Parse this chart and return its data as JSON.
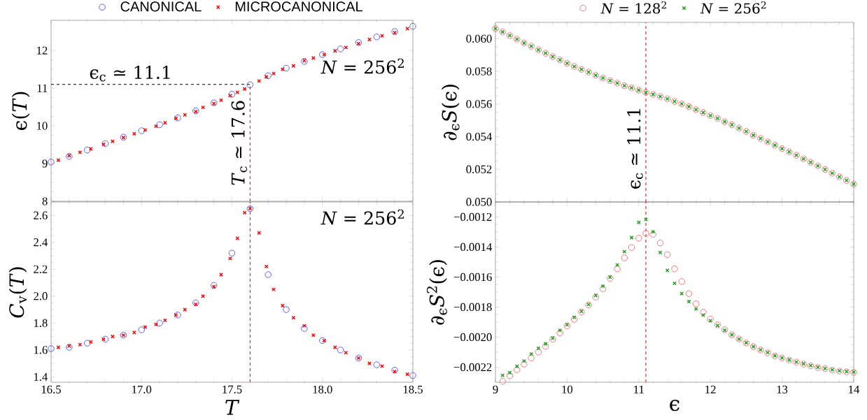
{
  "chart_data": [
    {
      "type": "scatter",
      "ylabel": "ϵ(*T*)",
      "xlim": [
        16.5,
        18.5
      ],
      "ylim": [
        8,
        12.8
      ],
      "xticks": [
        16.5,
        17,
        17.5,
        18,
        18.5
      ],
      "yticks": [
        8,
        9,
        10,
        11,
        12
      ],
      "tick_labels": "y",
      "legend": "top",
      "series": [
        {
          "name": "CANONICAL",
          "color": "#3a3aff",
          "marker": "circle",
          "x": [
            16.5,
            16.6,
            16.7,
            16.8,
            16.9,
            17.0,
            17.1,
            17.2,
            17.3,
            17.4,
            17.5,
            17.6,
            17.7,
            17.8,
            17.9,
            18.0,
            18.1,
            18.2,
            18.3,
            18.4,
            18.5
          ],
          "values": [
            9.04,
            9.19,
            9.36,
            9.53,
            9.7,
            9.87,
            10.03,
            10.21,
            10.4,
            10.61,
            10.84,
            11.09,
            11.33,
            11.53,
            11.71,
            11.89,
            12.04,
            12.21,
            12.36,
            12.5,
            12.64
          ]
        },
        {
          "name": "MICROCANONICAL",
          "color": "#ff0000",
          "marker": "cross",
          "x": [
            16.54,
            16.6,
            16.66,
            16.72,
            16.79,
            16.84,
            16.9,
            16.96,
            17.02,
            17.08,
            17.13,
            17.19,
            17.24,
            17.3,
            17.34,
            17.4,
            17.44,
            17.49,
            17.53,
            17.57,
            17.65,
            17.69,
            17.73,
            17.78,
            17.84,
            17.9,
            17.95,
            18.01,
            18.07,
            18.13,
            18.2,
            18.26,
            18.33,
            18.4,
            18.47
          ],
          "values": [
            9.09,
            9.21,
            9.3,
            9.39,
            9.51,
            9.59,
            9.69,
            9.79,
            9.89,
            9.99,
            10.08,
            10.2,
            10.29,
            10.38,
            10.49,
            10.59,
            10.68,
            10.8,
            10.89,
            10.98,
            11.19,
            11.3,
            11.39,
            11.5,
            11.59,
            11.73,
            11.8,
            11.89,
            11.99,
            12.08,
            12.18,
            12.29,
            12.39,
            12.47,
            12.58
          ]
        }
      ],
      "ref_lines": [
        {
          "axis": "y",
          "value": 11.1,
          "label": "ϵ$_{c}$ ≃ 11.1",
          "color": "#000000",
          "line_style": "dashed"
        },
        {
          "axis": "x",
          "value": 17.6,
          "label": "*T*$_{c}$ ≃ 17.6",
          "color": "#ff0000",
          "line_style": "dashed"
        }
      ],
      "annotations": [
        "*N* = 256$^{2}$"
      ]
    },
    {
      "type": "scatter",
      "xlabel": "*T*",
      "ylabel": "*C*$_{v}$(*T*)",
      "xlim": [
        16.5,
        18.5
      ],
      "ylim": [
        1.36,
        2.7
      ],
      "xticks": [
        16.5,
        {
          "value": 17,
          "label": "17.0"
        },
        17.5,
        {
          "value": 18,
          "label": "18.0"
        },
        18.5
      ],
      "yticks": [
        1.4,
        1.6,
        1.8,
        {
          "value": 2,
          "label": "2.0"
        },
        2.2,
        2.4,
        2.6
      ],
      "series": [
        {
          "color": "#3a3aff",
          "marker": "circle",
          "x": [
            16.5,
            16.6,
            16.7,
            16.8,
            16.9,
            17.0,
            17.1,
            17.2,
            17.3,
            17.4,
            17.5,
            17.6,
            17.7,
            17.8,
            17.9,
            18.0,
            18.1,
            18.2,
            18.3,
            18.4,
            18.5
          ],
          "values": [
            1.61,
            1.62,
            1.65,
            1.68,
            1.71,
            1.75,
            1.8,
            1.86,
            1.95,
            2.08,
            2.32,
            2.65,
            2.16,
            1.9,
            1.76,
            1.67,
            1.6,
            1.54,
            1.49,
            1.45,
            1.41
          ]
        },
        {
          "color": "#ff0000",
          "marker": "cross",
          "x": [
            16.54,
            16.6,
            16.66,
            16.72,
            16.79,
            16.84,
            16.9,
            16.96,
            17.02,
            17.08,
            17.13,
            17.19,
            17.24,
            17.3,
            17.34,
            17.4,
            17.44,
            17.49,
            17.53,
            17.57,
            17.6,
            17.65,
            17.69,
            17.73,
            17.78,
            17.84,
            17.9,
            17.95,
            18.01,
            18.07,
            18.13,
            18.2,
            18.26,
            18.33,
            18.4,
            18.47
          ],
          "values": [
            1.62,
            1.63,
            1.64,
            1.66,
            1.68,
            1.7,
            1.71,
            1.73,
            1.77,
            1.79,
            1.82,
            1.86,
            1.9,
            1.94,
            2.0,
            2.07,
            2.16,
            2.28,
            2.43,
            2.62,
            2.65,
            2.47,
            2.22,
            2.05,
            1.93,
            1.84,
            1.78,
            1.71,
            1.67,
            1.62,
            1.58,
            1.54,
            1.5,
            1.48,
            1.44,
            1.42
          ]
        }
      ],
      "ref_lines": [
        {
          "axis": "x",
          "value": 17.6,
          "color": "#ff0000",
          "line_style": "dashed"
        }
      ],
      "annotations": [
        "*N* = 256$^{2}$"
      ]
    },
    {
      "type": "scatter",
      "ylabel": "∂$_{ϵ}$*S*(ϵ)",
      "xlim": [
        9,
        14
      ],
      "ylim": [
        0.05,
        0.061
      ],
      "xticks": [
        9,
        10,
        11,
        12,
        13,
        14
      ],
      "yticks": [
        {
          "value": 0.05,
          "label": "0.050"
        },
        {
          "value": 0.052,
          "label": "0.052"
        },
        {
          "value": 0.054,
          "label": "0.054"
        },
        {
          "value": 0.056,
          "label": "0.056"
        },
        {
          "value": 0.058,
          "label": "0.058"
        },
        {
          "value": 0.06,
          "label": "0.060"
        }
      ],
      "tick_labels": "y",
      "legend": "top",
      "x": [
        9.0,
        9.1,
        9.2,
        9.3,
        9.4,
        9.5,
        9.6,
        9.7,
        9.8,
        9.9,
        10.0,
        10.1,
        10.2,
        10.3,
        10.4,
        10.5,
        10.6,
        10.7,
        10.8,
        10.9,
        11.0,
        11.1,
        11.2,
        11.3,
        11.4,
        11.5,
        11.6,
        11.7,
        11.8,
        11.9,
        12.0,
        12.1,
        12.2,
        12.3,
        12.4,
        12.5,
        12.6,
        12.7,
        12.8,
        12.9,
        13.0,
        13.1,
        13.2,
        13.3,
        13.4,
        13.5,
        13.6,
        13.7,
        13.8,
        13.9,
        14.0
      ],
      "series": [
        {
          "name": "*N* = 128$^{2}$",
          "color": "#f25c5c",
          "marker": "circle",
          "values": [
            0.06062,
            0.06041,
            0.06019,
            0.05997,
            0.05974,
            0.05954,
            0.05932,
            0.05911,
            0.0589,
            0.0587,
            0.05849,
            0.0583,
            0.05812,
            0.05795,
            0.05776,
            0.05759,
            0.05743,
            0.05728,
            0.05712,
            0.05699,
            0.05685,
            0.05671,
            0.05659,
            0.05646,
            0.05632,
            0.05616,
            0.05601,
            0.05584,
            0.05565,
            0.05548,
            0.05529,
            0.05512,
            0.05491,
            0.05473,
            0.05452,
            0.05432,
            0.05409,
            0.05389,
            0.05368,
            0.05348,
            0.05327,
            0.05307,
            0.05286,
            0.05264,
            0.05243,
            0.05221,
            0.05199,
            0.05176,
            0.05154,
            0.05132,
            0.0511
          ]
        },
        {
          "name": "*N* = 256$^{2}$",
          "color": "#1e9e1e",
          "marker": "cross",
          "values": [
            0.06062,
            0.06041,
            0.06019,
            0.05997,
            0.05974,
            0.05954,
            0.05932,
            0.05911,
            0.0589,
            0.0587,
            0.05849,
            0.0583,
            0.05812,
            0.05795,
            0.05776,
            0.05759,
            0.05743,
            0.05728,
            0.05712,
            0.05699,
            0.05685,
            0.05671,
            0.05659,
            0.05646,
            0.05632,
            0.05616,
            0.05601,
            0.05584,
            0.05565,
            0.05548,
            0.05529,
            0.05512,
            0.05491,
            0.05473,
            0.05452,
            0.05432,
            0.05409,
            0.05389,
            0.05368,
            0.05348,
            0.05327,
            0.05307,
            0.05286,
            0.05264,
            0.05243,
            0.05221,
            0.05199,
            0.05176,
            0.05154,
            0.05132,
            0.0511
          ]
        }
      ],
      "ref_lines": [
        {
          "axis": "x",
          "value": 11.1,
          "label": "ϵ$_{c}$ ≃ 11.1",
          "color": "#ff0000",
          "line_style": "dashed"
        }
      ]
    },
    {
      "type": "scatter",
      "xlabel": "ϵ",
      "ylabel": "∂$_{ϵ}$*S*$^{2}$(ϵ)",
      "xlim": [
        9,
        14
      ],
      "ylim": [
        -0.0023,
        -0.0011
      ],
      "xticks": [
        9,
        10,
        11,
        12,
        13,
        14
      ],
      "yticks": [
        {
          "value": -0.0022,
          "label": "−0.0022"
        },
        {
          "value": -0.002,
          "label": "−0.0020"
        },
        {
          "value": -0.0018,
          "label": "−0.0018"
        },
        {
          "value": -0.0016,
          "label": "−0.0016"
        },
        {
          "value": -0.0014,
          "label": "−0.0014"
        },
        {
          "value": -0.0012,
          "label": "−0.0012"
        }
      ],
      "x": [
        9.1,
        9.2,
        9.3,
        9.4,
        9.5,
        9.6,
        9.7,
        9.8,
        9.9,
        10.0,
        10.1,
        10.2,
        10.3,
        10.4,
        10.5,
        10.6,
        10.7,
        10.8,
        10.9,
        11.0,
        11.1,
        11.2,
        11.3,
        11.4,
        11.5,
        11.6,
        11.7,
        11.8,
        11.9,
        12.0,
        12.1,
        12.2,
        12.3,
        12.4,
        12.5,
        12.6,
        12.7,
        12.8,
        12.9,
        13.0,
        13.1,
        13.2,
        13.3,
        13.4,
        13.5,
        13.6,
        13.7,
        13.8,
        13.9,
        14.0
      ],
      "series": [
        {
          "color": "#f25c5c",
          "marker": "circle",
          "values": [
            -0.002294,
            -0.002256,
            -0.002217,
            -0.002179,
            -0.002138,
            -0.002099,
            -0.002061,
            -0.002014,
            -0.001971,
            -0.001924,
            -0.001881,
            -0.001832,
            -0.001785,
            -0.001733,
            -0.001678,
            -0.001609,
            -0.001545,
            -0.001472,
            -0.001403,
            -0.001341,
            -0.001309,
            -0.001316,
            -0.001373,
            -0.00145,
            -0.001545,
            -0.00163,
            -0.00171,
            -0.001778,
            -0.001834,
            -0.001879,
            -0.001917,
            -0.00195,
            -0.001984,
            -0.002012,
            -0.002039,
            -0.002063,
            -0.002085,
            -0.002104,
            -0.002125,
            -0.002138,
            -0.002153,
            -0.002166,
            -0.002179,
            -0.002191,
            -0.002202,
            -0.002209,
            -0.002219,
            -0.002226,
            -0.00223,
            -0.002234
          ]
        },
        {
          "color": "#1e9e1e",
          "marker": "cross",
          "values": [
            -0.002254,
            -0.002236,
            -0.002194,
            -0.002159,
            -0.002112,
            -0.002074,
            -0.002044,
            -0.002007,
            -0.001954,
            -0.001917,
            -0.001868,
            -0.001828,
            -0.001782,
            -0.001722,
            -0.00166,
            -0.0016,
            -0.001519,
            -0.001431,
            -0.001337,
            -0.001236,
            -0.001217,
            -0.001298,
            -0.001436,
            -0.001555,
            -0.001641,
            -0.00171,
            -0.001763,
            -0.001812,
            -0.001853,
            -0.00189,
            -0.001922,
            -0.001954,
            -0.001984,
            -0.002012,
            -0.002037,
            -0.002063,
            -0.002084,
            -0.002102,
            -0.002123,
            -0.002138,
            -0.002151,
            -0.002166,
            -0.002177,
            -0.002189,
            -0.0022,
            -0.002209,
            -0.002217,
            -0.002224,
            -0.002228,
            -0.002232
          ]
        }
      ],
      "ref_lines": [
        {
          "axis": "x",
          "value": 11.1,
          "color": "#ff0000",
          "line_style": "dashed"
        }
      ]
    }
  ]
}
